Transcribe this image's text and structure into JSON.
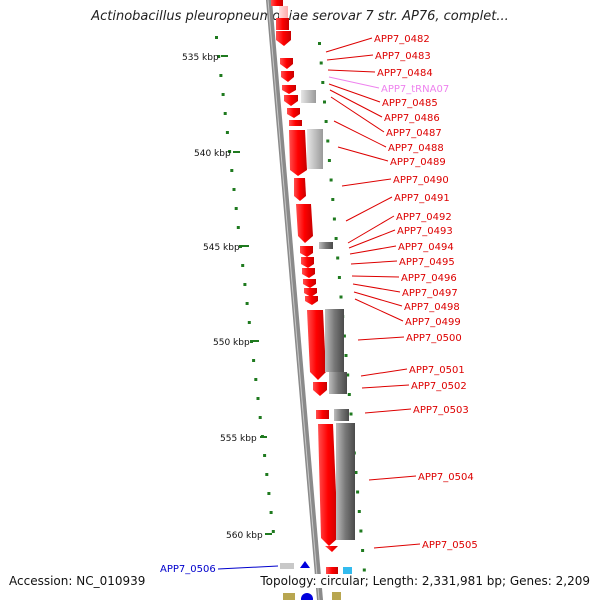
{
  "title": "Actinobacillus pleuropneumoniae serovar 7 str. AP76, complet...",
  "footer": {
    "accession": "Accession: NC_010939",
    "summary": "Topology: circular; Length: 2,331,981 bp; Genes: 2,209"
  },
  "colors": {
    "gene": "#ff0000",
    "trna_label": "#ee82ee",
    "label": "#dd0000",
    "feature_gray": "#777777",
    "ruler": "#808080",
    "tick": "#1f7a1f",
    "blue_label": "#0000cc"
  },
  "scale": {
    "unit": "kbp",
    "ticks": [
      {
        "value": 535,
        "label": "535 kbp"
      },
      {
        "value": 540,
        "label": "540 kbp"
      },
      {
        "value": 545,
        "label": "545 kbp"
      },
      {
        "value": 550,
        "label": "550 kbp"
      },
      {
        "value": 555,
        "label": "555 kbp"
      },
      {
        "value": 560,
        "label": "560 kbp"
      }
    ]
  },
  "gene_labels": [
    {
      "name": "APP7_0482",
      "kind": "gene"
    },
    {
      "name": "APP7_0483",
      "kind": "gene"
    },
    {
      "name": "APP7_0484",
      "kind": "gene"
    },
    {
      "name": "APP7_tRNA07",
      "kind": "trna"
    },
    {
      "name": "APP7_0485",
      "kind": "gene"
    },
    {
      "name": "APP7_0486",
      "kind": "gene"
    },
    {
      "name": "APP7_0487",
      "kind": "gene"
    },
    {
      "name": "APP7_0488",
      "kind": "gene"
    },
    {
      "name": "APP7_0489",
      "kind": "gene"
    },
    {
      "name": "APP7_0490",
      "kind": "gene"
    },
    {
      "name": "APP7_0491",
      "kind": "gene"
    },
    {
      "name": "APP7_0492",
      "kind": "gene"
    },
    {
      "name": "APP7_0493",
      "kind": "gene"
    },
    {
      "name": "APP7_0494",
      "kind": "gene"
    },
    {
      "name": "APP7_0495",
      "kind": "gene"
    },
    {
      "name": "APP7_0496",
      "kind": "gene"
    },
    {
      "name": "APP7_0497",
      "kind": "gene"
    },
    {
      "name": "APP7_0498",
      "kind": "gene"
    },
    {
      "name": "APP7_0499",
      "kind": "gene"
    },
    {
      "name": "APP7_0500",
      "kind": "gene"
    },
    {
      "name": "APP7_0501",
      "kind": "gene"
    },
    {
      "name": "APP7_0502",
      "kind": "gene"
    },
    {
      "name": "APP7_0503",
      "kind": "gene"
    },
    {
      "name": "APP7_0504",
      "kind": "gene"
    },
    {
      "name": "APP7_0505",
      "kind": "gene"
    },
    {
      "name": "APP7_0506",
      "kind": "left"
    }
  ]
}
